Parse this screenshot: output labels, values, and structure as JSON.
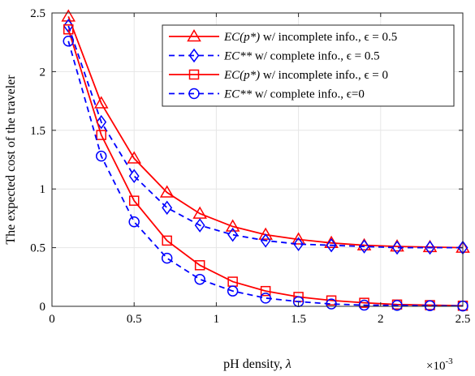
{
  "chart_data": {
    "type": "line",
    "xlabel_text": "pH density, ",
    "xlabel_symbol": "λ",
    "ylabel": "The expected cost of the traveler",
    "x_exponent_base": "×10",
    "x_exponent_power": "-3",
    "xlim": [
      0,
      2.5
    ],
    "ylim": [
      0,
      2.5
    ],
    "x_ticks": [
      0,
      0.5,
      1,
      1.5,
      2,
      2.5
    ],
    "x_tick_labels": [
      "0",
      "0.5",
      "1",
      "1.5",
      "2",
      "2.5"
    ],
    "y_ticks": [
      0,
      0.5,
      1,
      1.5,
      2,
      2.5
    ],
    "y_tick_labels": [
      "0",
      "0.5",
      "1",
      "1.5",
      "2",
      "2.5"
    ],
    "grid": true,
    "legend_position": "top-right",
    "x": [
      0.1,
      0.3,
      0.5,
      0.7,
      0.9,
      1.1,
      1.3,
      1.5,
      1.7,
      1.9,
      2.1,
      2.3,
      2.5
    ],
    "series": [
      {
        "legend_math": "EC(p*)",
        "legend_rest": " w/ incomplete info., ϵ = 0.5",
        "color": "#ff0000",
        "line_style": "solid",
        "marker": "triangle",
        "values": [
          2.47,
          1.73,
          1.26,
          0.97,
          0.79,
          0.68,
          0.61,
          0.57,
          0.54,
          0.52,
          0.51,
          0.505,
          0.5
        ]
      },
      {
        "legend_math": "EC**",
        "legend_rest": " w/ complete info., ϵ = 0.5",
        "color": "#0000ff",
        "line_style": "dashed",
        "marker": "diamond",
        "values": [
          2.39,
          1.57,
          1.11,
          0.84,
          0.69,
          0.61,
          0.56,
          0.53,
          0.52,
          0.51,
          0.5,
          0.5,
          0.5
        ]
      },
      {
        "legend_math": "EC(p*)",
        "legend_rest": " w/ incomplete info., ϵ = 0",
        "color": "#ff0000",
        "line_style": "solid",
        "marker": "square",
        "values": [
          2.36,
          1.46,
          0.9,
          0.56,
          0.35,
          0.21,
          0.13,
          0.08,
          0.05,
          0.03,
          0.015,
          0.01,
          0.005
        ]
      },
      {
        "legend_math": "EC**",
        "legend_rest": " w/ complete info., ϵ=0",
        "color": "#0000ff",
        "line_style": "dashed",
        "marker": "circle",
        "values": [
          2.26,
          1.28,
          0.72,
          0.41,
          0.23,
          0.13,
          0.07,
          0.04,
          0.02,
          0.01,
          0.008,
          0.005,
          0.003
        ]
      }
    ]
  }
}
